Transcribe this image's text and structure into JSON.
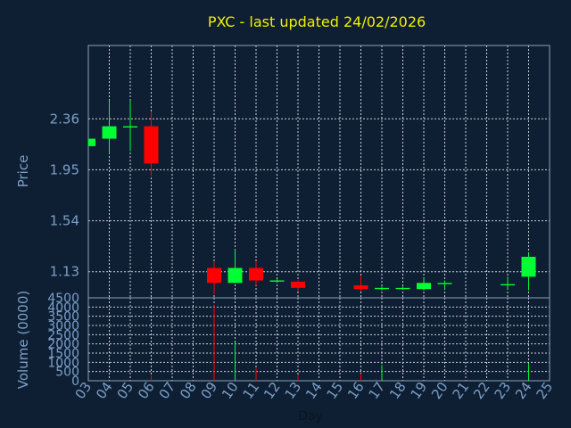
{
  "chart_data": {
    "type": "candlestick",
    "title": "PXC - last updated 24/02/2026",
    "xlabel": "Day",
    "price_ylabel": "Price",
    "volume_ylabel": "Volume (0000)",
    "x_ticks": [
      "03",
      "04",
      "05",
      "06",
      "07",
      "08",
      "09",
      "10",
      "11",
      "12",
      "13",
      "14",
      "15",
      "16",
      "17",
      "18",
      "19",
      "20",
      "21",
      "22",
      "23",
      "24",
      "25"
    ],
    "price_ticks": [
      "2.36",
      "1.95",
      "1.54",
      "1.13"
    ],
    "price_ylim": [
      0.92,
      2.95
    ],
    "volume_ticks": [
      "4500",
      "4000",
      "3500",
      "3000",
      "2500",
      "2000",
      "1500",
      "1000",
      "500",
      "0"
    ],
    "volume_ylim": [
      0,
      4500
    ],
    "up_color": "#00ff33",
    "down_color": "#ff0000",
    "candles": [
      {
        "day": 3,
        "open": 2.14,
        "high": 2.2,
        "low": 2.14,
        "close": 2.2,
        "volume": 0
      },
      {
        "day": 4,
        "open": 2.2,
        "high": 2.51,
        "low": 2.08,
        "close": 2.3,
        "volume": 0
      },
      {
        "day": 5,
        "open": 2.29,
        "high": 2.51,
        "low": 2.1,
        "close": 2.3,
        "volume": 0
      },
      {
        "day": 6,
        "open": 2.3,
        "high": 2.42,
        "low": 1.9,
        "close": 2.0,
        "volume": 280
      },
      {
        "day": 9,
        "open": 1.16,
        "high": 1.21,
        "low": 0.95,
        "close": 1.04,
        "volume": 4100
      },
      {
        "day": 10,
        "open": 1.04,
        "high": 1.31,
        "low": 1.04,
        "close": 1.16,
        "volume": 2100
      },
      {
        "day": 11,
        "open": 1.16,
        "high": 1.21,
        "low": 1.02,
        "close": 1.06,
        "volume": 700
      },
      {
        "day": 12,
        "open": 1.05,
        "high": 1.07,
        "low": 1.04,
        "close": 1.06,
        "volume": 0
      },
      {
        "day": 13,
        "open": 1.05,
        "high": 1.06,
        "low": 0.97,
        "close": 1.0,
        "volume": 320
      },
      {
        "day": 16,
        "open": 1.02,
        "high": 1.1,
        "low": 0.97,
        "close": 0.99,
        "volume": 380
      },
      {
        "day": 17,
        "open": 0.99,
        "high": 1.01,
        "low": 0.98,
        "close": 1.0,
        "volume": 850
      },
      {
        "day": 18,
        "open": 0.99,
        "high": 1.01,
        "low": 0.99,
        "close": 1.0,
        "volume": 0
      },
      {
        "day": 19,
        "open": 0.99,
        "high": 1.08,
        "low": 0.98,
        "close": 1.04,
        "volume": 0
      },
      {
        "day": 20,
        "open": 1.03,
        "high": 1.06,
        "low": 0.99,
        "close": 1.04,
        "volume": 0
      },
      {
        "day": 23,
        "open": 1.02,
        "high": 1.09,
        "low": 0.99,
        "close": 1.03,
        "volume": 0
      },
      {
        "day": 24,
        "open": 1.09,
        "high": 1.28,
        "low": 0.98,
        "close": 1.25,
        "volume": 950
      }
    ]
  }
}
